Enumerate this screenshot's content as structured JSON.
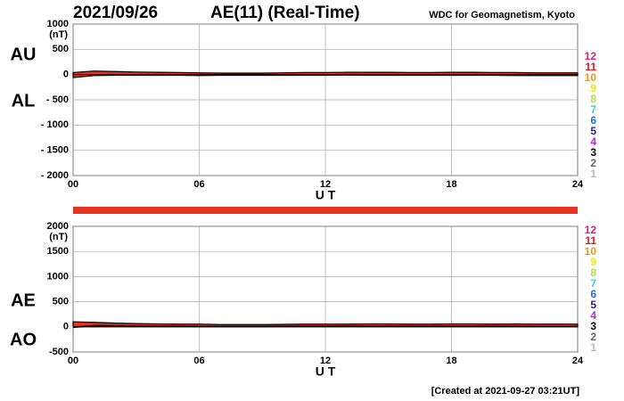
{
  "header": {
    "date": "2021/09/26",
    "title": "AE(11) (Real-Time)",
    "source": "WDC for Geomagnetism, Kyoto",
    "created": "[Created at 2021-09-27 03:21UT]"
  },
  "station_legend": [
    {
      "label": "12",
      "color": "#e8197c"
    },
    {
      "label": "11",
      "color": "#e8141e"
    },
    {
      "label": "10",
      "color": "#f39800"
    },
    {
      "label": "9",
      "color": "#f2e600"
    },
    {
      "label": "8",
      "color": "#a6e04a"
    },
    {
      "label": "7",
      "color": "#3cc8e6"
    },
    {
      "label": "6",
      "color": "#1e6ee6"
    },
    {
      "label": "5",
      "color": "#2b1c9e"
    },
    {
      "label": "4",
      "color": "#c21ee0"
    },
    {
      "label": "3",
      "color": "#000000"
    },
    {
      "label": "2",
      "color": "#666666"
    },
    {
      "label": "1",
      "color": "#bbbbbb"
    }
  ],
  "chart_data": [
    {
      "type": "area",
      "unit": "(nT)",
      "xlabel": "U T",
      "upper_label": "AU",
      "lower_label": "AL",
      "x": [
        0,
        1,
        2,
        3,
        4,
        5,
        6,
        7,
        8,
        9,
        10,
        11,
        12,
        13,
        14,
        15,
        16,
        17,
        18,
        19,
        20,
        21,
        22,
        23,
        24
      ],
      "xlim": [
        0,
        24
      ],
      "xticks": [
        {
          "value": 0,
          "label": "00"
        },
        {
          "value": 6,
          "label": "06"
        },
        {
          "value": 12,
          "label": "12"
        },
        {
          "value": 18,
          "label": "18"
        },
        {
          "value": 24,
          "label": "24"
        }
      ],
      "ylim": [
        -2000,
        1000
      ],
      "yticks": [
        1000,
        500,
        0,
        {
          "value": -500,
          "label": "- 500"
        },
        {
          "value": -1000,
          "label": "- 1000"
        },
        {
          "value": -1500,
          "label": "- 1500"
        },
        {
          "value": -2000,
          "label": "- 2000"
        }
      ],
      "grid": true,
      "series": [
        {
          "name": "AU",
          "color": "#e8321e",
          "values": [
            40,
            70,
            60,
            50,
            45,
            40,
            35,
            30,
            30,
            30,
            35,
            40,
            40,
            45,
            45,
            45,
            40,
            40,
            45,
            45,
            40,
            40,
            35,
            35,
            35
          ]
        },
        {
          "name": "AL",
          "color": "#e8321e",
          "values": [
            -60,
            -20,
            -15,
            -15,
            -15,
            -15,
            -20,
            -15,
            -15,
            -15,
            -15,
            -15,
            -15,
            -10,
            -15,
            -15,
            -15,
            -15,
            -15,
            -15,
            -15,
            -20,
            -20,
            -20,
            -20
          ]
        }
      ]
    },
    {
      "type": "area",
      "unit": "(nT)",
      "xlabel": "U T",
      "upper_label": "AE",
      "lower_label": "AO",
      "x": [
        0,
        1,
        2,
        3,
        4,
        5,
        6,
        7,
        8,
        9,
        10,
        11,
        12,
        13,
        14,
        15,
        16,
        17,
        18,
        19,
        20,
        21,
        22,
        23,
        24
      ],
      "xlim": [
        0,
        24
      ],
      "xticks": [
        {
          "value": 0,
          "label": "00"
        },
        {
          "value": 6,
          "label": "06"
        },
        {
          "value": 12,
          "label": "12"
        },
        {
          "value": 18,
          "label": "18"
        },
        {
          "value": 24,
          "label": "24"
        }
      ],
      "ylim": [
        -500,
        2000
      ],
      "yticks": [
        2000,
        1500,
        1000,
        500,
        0,
        {
          "value": -500,
          "label": "-500"
        }
      ],
      "grid": true,
      "series": [
        {
          "name": "AE",
          "color": "#e8321e",
          "values": [
            100,
            90,
            75,
            65,
            60,
            55,
            55,
            45,
            45,
            45,
            50,
            55,
            55,
            55,
            60,
            60,
            55,
            55,
            60,
            60,
            55,
            60,
            55,
            55,
            55
          ]
        },
        {
          "name": "AO",
          "color": "#000000",
          "values": [
            -10,
            25,
            22.5,
            17.5,
            15,
            12.5,
            7.5,
            7.5,
            7.5,
            7.5,
            10,
            12.5,
            12.5,
            17.5,
            15,
            15,
            12.5,
            12.5,
            15,
            15,
            12.5,
            10,
            7.5,
            7.5,
            7.5
          ]
        }
      ]
    }
  ]
}
